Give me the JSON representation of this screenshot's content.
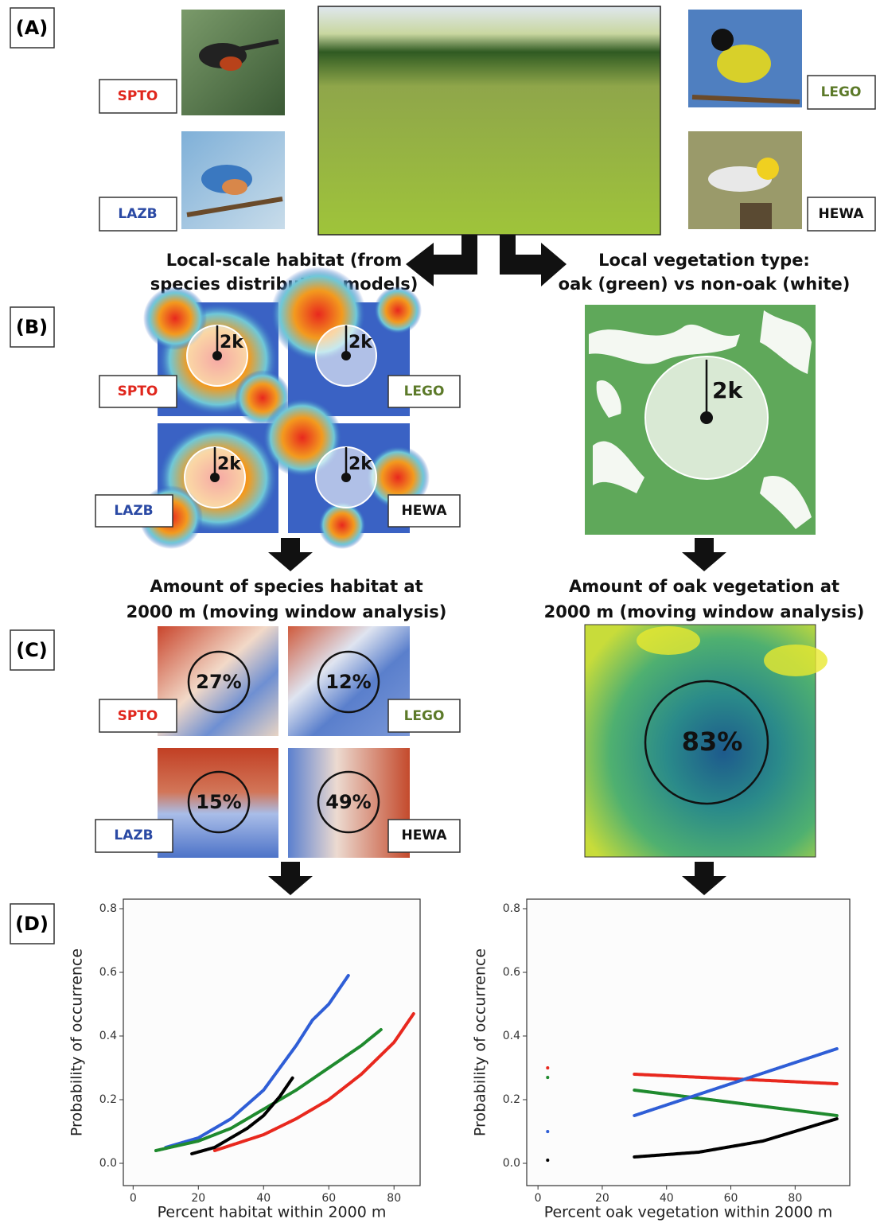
{
  "panel_labels": [
    "(A)",
    "(B)",
    "(C)",
    "(D)"
  ],
  "species": {
    "spto": "SPTO",
    "lego": "LEGO",
    "lazb": "LAZB",
    "hewa": "HEWA"
  },
  "headings": {
    "habitat_map": [
      "Local-scale habitat (from",
      "species distribution models)"
    ],
    "vegetation_map": [
      "Local vegetation type:",
      "oak (green) vs non-oak (white)"
    ],
    "habitat_amount": [
      "Amount of species habitat at",
      "2000 m (moving window analysis)"
    ],
    "vegetation_amount": [
      "Amount of oak vegetation at",
      "2000 m (moving window analysis)"
    ]
  },
  "radius_label": "2k",
  "habitat_amounts": {
    "spto": "27%",
    "lego": "12%",
    "lazb": "15%",
    "hewa": "49%"
  },
  "oak_amount": "83%",
  "chart_data": [
    {
      "type": "line",
      "xlabel": "Percent habitat within 2000 m",
      "ylabel": "Probability of occurrence",
      "xlim": [
        -3,
        88
      ],
      "ylim": [
        -0.07,
        0.83
      ],
      "xticks": [
        0,
        20,
        40,
        60,
        80
      ],
      "yticks": [
        {
          "value": 0,
          "label": "0.0"
        },
        {
          "value": 0.2,
          "label": "0.2"
        },
        {
          "value": 0.4,
          "label": "0.4"
        },
        {
          "value": 0.6,
          "label": "0.6"
        },
        {
          "value": 0.8,
          "label": "0.8"
        }
      ],
      "series": [
        {
          "color": "#2f5ed6",
          "x": [
            10,
            20,
            30,
            40,
            50,
            55,
            60,
            66
          ],
          "values": [
            0.05,
            0.08,
            0.14,
            0.23,
            0.37,
            0.45,
            0.5,
            0.59
          ]
        },
        {
          "color": "#1f8a2e",
          "x": [
            7,
            20,
            30,
            40,
            50,
            60,
            70,
            76
          ],
          "values": [
            0.04,
            0.07,
            0.11,
            0.17,
            0.23,
            0.3,
            0.37,
            0.42
          ]
        },
        {
          "color": "#e8281e",
          "x": [
            25,
            40,
            50,
            60,
            70,
            80,
            86
          ],
          "values": [
            0.04,
            0.09,
            0.14,
            0.2,
            0.28,
            0.38,
            0.47
          ]
        },
        {
          "color": "#000000",
          "x": [
            18,
            25,
            30,
            35,
            40,
            45,
            49
          ],
          "values": [
            0.03,
            0.05,
            0.08,
            0.11,
            0.15,
            0.21,
            0.27
          ]
        }
      ]
    },
    {
      "type": "line",
      "xlabel": "Percent oak vegetation within 2000 m",
      "ylabel": "Probability of occurrence",
      "xlim": [
        -3.5,
        97
      ],
      "ylim": [
        -0.07,
        0.83
      ],
      "xticks": [
        0,
        20,
        40,
        60,
        80
      ],
      "yticks": [
        {
          "value": 0,
          "label": "0.0"
        },
        {
          "value": 0.2,
          "label": "0.2"
        },
        {
          "value": 0.4,
          "label": "0.4"
        },
        {
          "value": 0.6,
          "label": "0.6"
        },
        {
          "value": 0.8,
          "label": "0.8"
        }
      ],
      "series": [
        {
          "color": "#e8281e",
          "x": [
            3
          ],
          "values": [
            0.3
          ]
        },
        {
          "color": "#1f8a2e",
          "x": [
            3
          ],
          "values": [
            0.27
          ]
        },
        {
          "color": "#2f5ed6",
          "x": [
            3
          ],
          "values": [
            0.1
          ]
        },
        {
          "color": "#000000",
          "x": [
            3
          ],
          "values": [
            0.01
          ]
        },
        {
          "color": "#e8281e",
          "x": [
            30,
            93
          ],
          "values": [
            0.28,
            0.25
          ]
        },
        {
          "color": "#1f8a2e",
          "x": [
            30,
            93
          ],
          "values": [
            0.23,
            0.15
          ]
        },
        {
          "color": "#2f5ed6",
          "x": [
            30,
            93
          ],
          "values": [
            0.15,
            0.36
          ]
        },
        {
          "color": "#000000",
          "x": [
            30,
            50,
            70,
            93
          ],
          "values": [
            0.02,
            0.035,
            0.07,
            0.14
          ]
        }
      ]
    }
  ]
}
